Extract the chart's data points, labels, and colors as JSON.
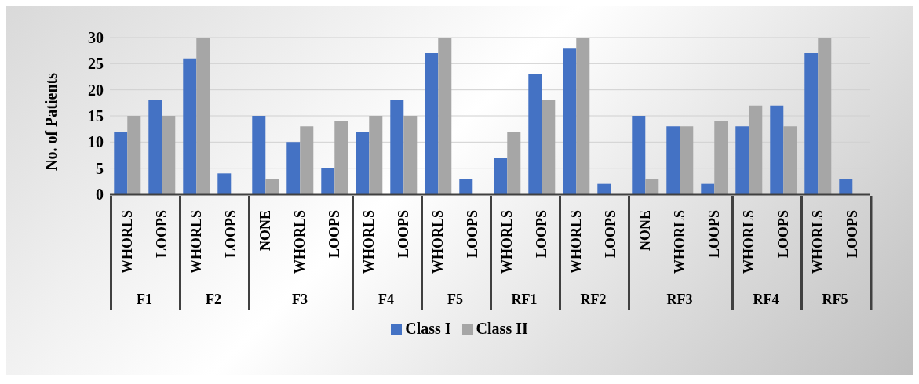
{
  "chart_data": [
    {
      "type": "bar",
      "xlabel": "F1",
      "ylabel": "No. of Patients",
      "categories": [
        "WHORLS",
        "LOOPS"
      ],
      "series": [
        {
          "name": "Class I",
          "color": "#4472c4",
          "values": [
            12,
            18
          ]
        },
        {
          "name": "Class II",
          "color": "#a6a6a6",
          "values": [
            15,
            15
          ]
        }
      ],
      "ylim": [
        0,
        30
      ],
      "yticks": [
        0,
        5,
        10,
        15,
        20,
        25,
        30
      ],
      "grid": "y",
      "legend": "bottom"
    },
    {
      "type": "bar",
      "xlabel": "F2",
      "categories": [
        "WHORLS",
        "LOOPS"
      ],
      "series": [
        {
          "color": "#4472c4",
          "values": [
            26,
            4
          ]
        },
        {
          "color": "#a6a6a6",
          "values": [
            30,
            0
          ]
        }
      ],
      "ylim": [
        0,
        30
      ],
      "yticks": [
        0,
        5,
        10,
        15,
        20,
        25,
        30
      ],
      "grid": "y",
      "tick_labels": "x"
    },
    {
      "type": "bar",
      "xlabel": "F3",
      "categories": [
        "NONE",
        "WHORLS",
        "LOOPS"
      ],
      "series": [
        {
          "color": "#4472c4",
          "values": [
            15,
            10,
            5
          ]
        },
        {
          "color": "#a6a6a6",
          "values": [
            3,
            13,
            14
          ]
        }
      ],
      "ylim": [
        0,
        30
      ],
      "yticks": [
        0,
        5,
        10,
        15,
        20,
        25,
        30
      ],
      "grid": "y",
      "tick_labels": "x"
    },
    {
      "type": "bar",
      "xlabel": "F4",
      "categories": [
        "WHORLS",
        "LOOPS"
      ],
      "series": [
        {
          "color": "#4472c4",
          "values": [
            12,
            18
          ]
        },
        {
          "color": "#a6a6a6",
          "values": [
            15,
            15
          ]
        }
      ],
      "ylim": [
        0,
        30
      ],
      "yticks": [
        0,
        5,
        10,
        15,
        20,
        25,
        30
      ],
      "grid": "y",
      "tick_labels": "x"
    },
    {
      "type": "bar",
      "xlabel": "F5",
      "categories": [
        "WHORLS",
        "LOOPS"
      ],
      "series": [
        {
          "color": "#4472c4",
          "values": [
            27,
            3
          ]
        },
        {
          "color": "#a6a6a6",
          "values": [
            30,
            0
          ]
        }
      ],
      "ylim": [
        0,
        30
      ],
      "yticks": [
        0,
        5,
        10,
        15,
        20,
        25,
        30
      ],
      "grid": "y",
      "tick_labels": "x"
    },
    {
      "type": "bar",
      "xlabel": "RF1",
      "categories": [
        "WHORLS",
        "LOOPS"
      ],
      "series": [
        {
          "color": "#4472c4",
          "values": [
            7,
            23
          ]
        },
        {
          "color": "#a6a6a6",
          "values": [
            12,
            18
          ]
        }
      ],
      "ylim": [
        0,
        30
      ],
      "yticks": [
        0,
        5,
        10,
        15,
        20,
        25,
        30
      ],
      "grid": "y",
      "tick_labels": "x"
    },
    {
      "type": "bar",
      "xlabel": "RF2",
      "categories": [
        "WHORLS",
        "LOOPS"
      ],
      "series": [
        {
          "color": "#4472c4",
          "values": [
            28,
            2
          ]
        },
        {
          "color": "#a6a6a6",
          "values": [
            30,
            0
          ]
        }
      ],
      "ylim": [
        0,
        30
      ],
      "yticks": [
        0,
        5,
        10,
        15,
        20,
        25,
        30
      ],
      "grid": "y",
      "tick_labels": "x"
    },
    {
      "type": "bar",
      "xlabel": "RF3",
      "categories": [
        "NONE",
        "WHORLS",
        "LOOPS"
      ],
      "series": [
        {
          "color": "#4472c4",
          "values": [
            15,
            13,
            2
          ]
        },
        {
          "color": "#a6a6a6",
          "values": [
            3,
            13,
            14
          ]
        }
      ],
      "ylim": [
        0,
        30
      ],
      "yticks": [
        0,
        5,
        10,
        15,
        20,
        25,
        30
      ],
      "grid": "y",
      "tick_labels": "x"
    },
    {
      "type": "bar",
      "xlabel": "RF4",
      "categories": [
        "WHORLS",
        "LOOPS"
      ],
      "series": [
        {
          "color": "#4472c4",
          "values": [
            13,
            17
          ]
        },
        {
          "color": "#a6a6a6",
          "values": [
            17,
            13
          ]
        }
      ],
      "ylim": [
        0,
        30
      ],
      "yticks": [
        0,
        5,
        10,
        15,
        20,
        25,
        30
      ],
      "grid": "y",
      "tick_labels": "x"
    },
    {
      "type": "bar",
      "xlabel": "RF5",
      "categories": [
        "WHORLS",
        "LOOPS"
      ],
      "series": [
        {
          "color": "#4472c4",
          "values": [
            27,
            3
          ]
        },
        {
          "color": "#a6a6a6",
          "values": [
            30,
            0
          ]
        }
      ],
      "ylim": [
        0,
        30
      ],
      "yticks": [
        0,
        5,
        10,
        15,
        20,
        25,
        30
      ],
      "grid": "y",
      "tick_labels": "x"
    }
  ]
}
